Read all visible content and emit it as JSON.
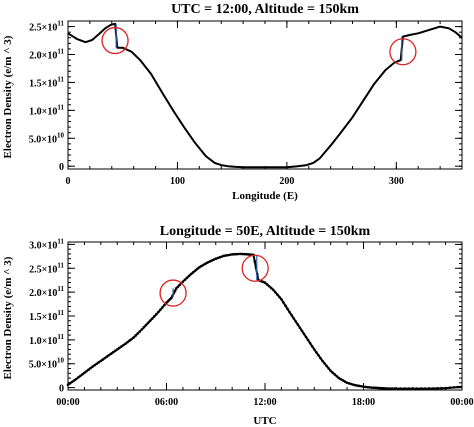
{
  "chart_data": [
    {
      "type": "line",
      "title": "UTC = 12:00, Altitude = 150km",
      "xlabel": "Longitude (E)",
      "ylabel": "Electron Density (e/m ^ 3)",
      "xlim": [
        0,
        360
      ],
      "ylim": [
        -5000000000.0,
        260000000000.0
      ],
      "x_ticks": [
        {
          "value": 0,
          "label": "0"
        },
        {
          "value": 100,
          "label": "100"
        },
        {
          "value": 200,
          "label": "200"
        },
        {
          "value": 300,
          "label": "300"
        }
      ],
      "y_ticks": [
        {
          "value": 0,
          "mant": "0",
          "exp": ""
        },
        {
          "value": 50000000000.0,
          "mant": "5.0×10",
          "exp": "10"
        },
        {
          "value": 100000000000.0,
          "mant": "1.0×10",
          "exp": "11"
        },
        {
          "value": 150000000000.0,
          "mant": "1.5×10",
          "exp": "11"
        },
        {
          "value": 200000000000.0,
          "mant": "2.0×10",
          "exp": "11"
        },
        {
          "value": 250000000000.0,
          "mant": "2.5×10",
          "exp": "11"
        }
      ],
      "x_minor_step": 20,
      "y_minor_step": 10000000000.0,
      "series": [
        {
          "x": [
            0,
            8,
            16,
            22,
            28,
            34,
            39,
            43,
            45,
            50,
            58,
            66,
            76,
            86,
            96,
            106,
            116,
            126,
            134,
            140,
            146,
            152,
            160,
            170,
            180,
            190,
            200,
            210,
            218,
            224,
            230,
            236,
            242,
            250,
            260,
            270,
            280,
            290,
            298,
            304,
            306,
            312,
            320,
            330,
            340,
            348,
            354,
            360
          ],
          "y": [
            238000000000.0,
            228000000000.0,
            222000000000.0,
            226000000000.0,
            236000000000.0,
            247000000000.0,
            253000000000.0,
            255000000000.0,
            212000000000.0,
            212000000000.0,
            205000000000.0,
            190000000000.0,
            165000000000.0,
            132000000000.0,
            100000000000.0,
            70000000000.0,
            42000000000.0,
            18000000000.0,
            6000000000.0,
            2000000000.0,
            0.0,
            -1000000000.0,
            -2000000000.0,
            -2000000000.0,
            -2000000000.0,
            -2000000000.0,
            -2000000000.0,
            0.0,
            2000000000.0,
            6000000000.0,
            14000000000.0,
            28000000000.0,
            42000000000.0,
            62000000000.0,
            88000000000.0,
            118000000000.0,
            148000000000.0,
            172000000000.0,
            185000000000.0,
            190000000000.0,
            232000000000.0,
            235000000000.0,
            238000000000.0,
            244000000000.0,
            250000000000.0,
            247000000000.0,
            240000000000.0,
            230000000000.0
          ]
        }
      ],
      "jumps": [
        {
          "x": 44,
          "from": 255000000000.0,
          "to": 212000000000.0
        },
        {
          "x": 305,
          "from": 190000000000.0,
          "to": 232000000000.0
        }
      ],
      "circles": [
        {
          "x": 43,
          "y": 225000000000.0
        },
        {
          "x": 306,
          "y": 205000000000.0
        }
      ]
    },
    {
      "type": "line",
      "title": "Longitude = 50E, Altitude = 150km",
      "xlabel": "UTC",
      "ylabel": "Electron Density (e/m ^ 3)",
      "xlim": [
        0,
        24
      ],
      "ylim": [
        -5000000000.0,
        305000000000.0
      ],
      "x_ticks": [
        {
          "value": 0,
          "label": "00:00"
        },
        {
          "value": 6,
          "label": "06:00"
        },
        {
          "value": 12,
          "label": "12:00"
        },
        {
          "value": 18,
          "label": "18:00"
        },
        {
          "value": 24,
          "label": "00:00"
        }
      ],
      "y_ticks": [
        {
          "value": 0,
          "mant": "0",
          "exp": ""
        },
        {
          "value": 50000000000.0,
          "mant": "5.0×10",
          "exp": "10"
        },
        {
          "value": 100000000000.0,
          "mant": "1.0×10",
          "exp": "11"
        },
        {
          "value": 150000000000.0,
          "mant": "1.5×10",
          "exp": "11"
        },
        {
          "value": 200000000000.0,
          "mant": "2.0×10",
          "exp": "11"
        },
        {
          "value": 250000000000.0,
          "mant": "2.5×10",
          "exp": "11"
        },
        {
          "value": 300000000000.0,
          "mant": "3.0×10",
          "exp": "11"
        }
      ],
      "x_minor_step": 1,
      "y_minor_step": 10000000000.0,
      "series": [
        {
          "x": [
            0,
            0.5,
            1,
            1.5,
            2,
            2.5,
            3,
            3.5,
            4,
            4.5,
            5,
            5.5,
            6,
            6.3,
            6.6,
            7,
            7.5,
            8,
            8.5,
            9,
            9.5,
            10,
            10.5,
            11,
            11.3,
            11.6,
            12,
            12.5,
            13,
            13.5,
            14,
            14.5,
            15,
            15.5,
            16,
            16.5,
            17,
            17.5,
            18,
            18.5,
            19,
            19.5,
            20,
            21,
            22,
            23,
            24
          ],
          "y": [
            6000000000.0,
            18000000000.0,
            31000000000.0,
            44000000000.0,
            56000000000.0,
            68000000000.0,
            80000000000.0,
            92000000000.0,
            105000000000.0,
            122000000000.0,
            140000000000.0,
            158000000000.0,
            178000000000.0,
            188000000000.0,
            208000000000.0,
            222000000000.0,
            238000000000.0,
            252000000000.0,
            262000000000.0,
            270000000000.0,
            276000000000.0,
            279000000000.0,
            280000000000.0,
            279000000000.0,
            278000000000.0,
            225000000000.0,
            220000000000.0,
            205000000000.0,
            185000000000.0,
            158000000000.0,
            132000000000.0,
            106000000000.0,
            80000000000.0,
            56000000000.0,
            35000000000.0,
            20000000000.0,
            10000000000.0,
            5000000000.0,
            2000000000.0,
            0.0,
            -1000000000.0,
            -2000000000.0,
            -2000000000.0,
            -2000000000.0,
            -2000000000.0,
            -1000000000.0,
            2000000000.0
          ]
        }
      ],
      "jumps": [
        {
          "x": 6.4,
          "from": 190000000000.0,
          "to": 208000000000.0
        },
        {
          "x": 11.5,
          "from": 278000000000.0,
          "to": 225000000000.0
        }
      ],
      "circles": [
        {
          "x": 6.4,
          "y": 198000000000.0
        },
        {
          "x": 11.4,
          "y": 250000000000.0
        }
      ]
    }
  ],
  "colors": {
    "line": "#000000",
    "jump_line": "#2f5fb0",
    "circle": "#dd2222",
    "axes": "#000000"
  }
}
